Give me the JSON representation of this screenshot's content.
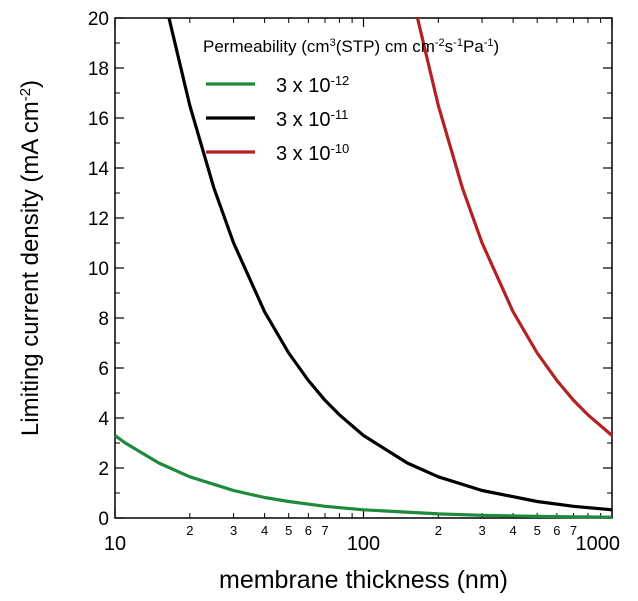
{
  "chart_data": {
    "type": "line",
    "title": "",
    "xlabel": "membrane thickness (nm)",
    "ylabel": {
      "base": "Limiting current density (mA cm",
      "sup": "-2",
      "close": ")"
    },
    "x_scale": "log",
    "xlim": [
      10,
      1000
    ],
    "ylim": [
      0,
      20
    ],
    "grid": false,
    "x_major_ticks": [
      {
        "value": 10,
        "label": "10"
      },
      {
        "value": 100,
        "label": "100"
      },
      {
        "value": 1000,
        "label": "1000"
      }
    ],
    "x_minor_ticks": [
      {
        "value": 20,
        "label": "2"
      },
      {
        "value": 30,
        "label": "3"
      },
      {
        "value": 40,
        "label": "4"
      },
      {
        "value": 50,
        "label": "5"
      },
      {
        "value": 60,
        "label": "6"
      },
      {
        "value": 70,
        "label": "7"
      },
      {
        "value": 80,
        "label": ""
      },
      {
        "value": 90,
        "label": ""
      },
      {
        "value": 200,
        "label": "2"
      },
      {
        "value": 300,
        "label": "3"
      },
      {
        "value": 400,
        "label": "4"
      },
      {
        "value": 500,
        "label": "5"
      },
      {
        "value": 600,
        "label": "6"
      },
      {
        "value": 700,
        "label": "7"
      },
      {
        "value": 800,
        "label": ""
      },
      {
        "value": 900,
        "label": ""
      }
    ],
    "y_major_ticks": [
      {
        "value": 0,
        "label": "0"
      },
      {
        "value": 2,
        "label": "2"
      },
      {
        "value": 4,
        "label": "4"
      },
      {
        "value": 6,
        "label": "6"
      },
      {
        "value": 8,
        "label": "8"
      },
      {
        "value": 10,
        "label": "10"
      },
      {
        "value": 12,
        "label": "12"
      },
      {
        "value": 14,
        "label": "14"
      },
      {
        "value": 16,
        "label": "16"
      },
      {
        "value": 18,
        "label": "18"
      },
      {
        "value": 20,
        "label": "20"
      }
    ],
    "y_minor_ticks": [
      1,
      3,
      5,
      7,
      9,
      11,
      13,
      15,
      17,
      19
    ],
    "legend": {
      "position": "top-right",
      "title": {
        "parts": [
          {
            "t": "Permeability (cm",
            "sup": false
          },
          {
            "t": "3",
            "sup": true
          },
          {
            "t": "(STP) cm cm",
            "sup": false
          },
          {
            "t": "-2",
            "sup": true
          },
          {
            "t": "s",
            "sup": false
          },
          {
            "t": "-1",
            "sup": true
          },
          {
            "t": "Pa",
            "sup": false
          },
          {
            "t": "-1",
            "sup": true
          },
          {
            "t": ")",
            "sup": false
          }
        ]
      }
    },
    "series": [
      {
        "label_base": "3 x 10",
        "label_exp": "-12",
        "color": "#1e8a3c",
        "x": [
          10,
          11,
          15,
          20,
          30,
          40,
          50,
          70,
          100,
          200,
          300,
          500,
          700,
          1000
        ],
        "y": [
          3.3,
          3.0,
          2.2,
          1.65,
          1.1,
          0.82,
          0.66,
          0.47,
          0.33,
          0.165,
          0.11,
          0.066,
          0.047,
          0.033
        ]
      },
      {
        "label_base": "3 x 10",
        "label_exp": "-11",
        "color": "#000000",
        "x": [
          16.5,
          20,
          25,
          30,
          40,
          50,
          60,
          70,
          80,
          100,
          150,
          200,
          300,
          500,
          700,
          1000
        ],
        "y": [
          20,
          16.5,
          13.2,
          11,
          8.25,
          6.6,
          5.5,
          4.71,
          4.13,
          3.3,
          2.2,
          1.65,
          1.1,
          0.66,
          0.47,
          0.33
        ]
      },
      {
        "label_base": "3 x 10",
        "label_exp": "-10",
        "color": "#b22222",
        "x": [
          165,
          200,
          250,
          300,
          400,
          500,
          600,
          700,
          800,
          1000
        ],
        "y": [
          20,
          16.5,
          13.2,
          11,
          8.25,
          6.6,
          5.5,
          4.71,
          4.13,
          3.3
        ]
      }
    ]
  }
}
